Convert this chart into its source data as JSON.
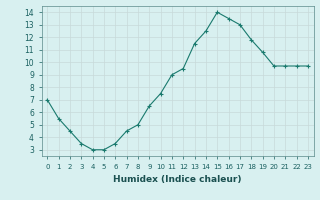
{
  "x": [
    0,
    1,
    2,
    3,
    4,
    5,
    6,
    7,
    8,
    9,
    10,
    11,
    12,
    13,
    14,
    15,
    16,
    17,
    18,
    19,
    20,
    21,
    22,
    23
  ],
  "y": [
    7.0,
    5.5,
    4.5,
    3.5,
    3.0,
    3.0,
    3.5,
    4.5,
    5.0,
    6.5,
    7.5,
    9.0,
    9.5,
    11.5,
    12.5,
    14.0,
    13.5,
    13.0,
    11.8,
    10.8,
    9.7,
    9.7,
    9.7,
    9.7
  ],
  "line_color": "#1a7a6e",
  "marker": "+",
  "marker_size": 3,
  "xlabel": "Humidex (Indice chaleur)",
  "xlim": [
    -0.5,
    23.5
  ],
  "ylim": [
    2.5,
    14.5
  ],
  "yticks": [
    3,
    4,
    5,
    6,
    7,
    8,
    9,
    10,
    11,
    12,
    13,
    14
  ],
  "xticks": [
    0,
    1,
    2,
    3,
    4,
    5,
    6,
    7,
    8,
    9,
    10,
    11,
    12,
    13,
    14,
    15,
    16,
    17,
    18,
    19,
    20,
    21,
    22,
    23
  ],
  "bg_color": "#d8f0f0",
  "grid_color": "#c8dada",
  "spine_color": "#5a8a8a",
  "tick_color": "#1a6060",
  "label_color": "#1a5050"
}
